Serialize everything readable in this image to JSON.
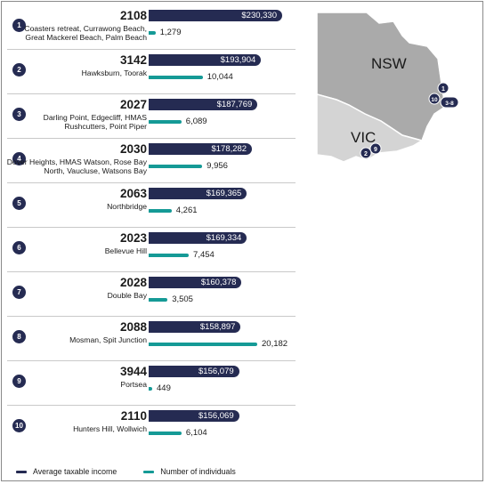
{
  "legend": {
    "income_label": "Average taxable income",
    "individuals_label": "Number of individuals"
  },
  "colors": {
    "income": "#252b52",
    "individuals": "#159a96"
  },
  "chart_data": {
    "type": "bar",
    "categories": [
      "2108",
      "3142",
      "2027",
      "2030",
      "2063",
      "2023",
      "2028",
      "2088",
      "3944",
      "2110"
    ],
    "series": [
      {
        "name": "Average taxable income",
        "values": [
          230330,
          193904,
          187769,
          178282,
          169365,
          169334,
          160378,
          158897,
          156079,
          156069
        ]
      },
      {
        "name": "Number of individuals",
        "values": [
          1279,
          10044,
          6089,
          9956,
          4261,
          7454,
          3505,
          20182,
          449,
          6104
        ]
      }
    ],
    "rows": [
      {
        "rank": "1",
        "postcode": "2108",
        "suburbs": "Coasters retreat, Currawong Beach, Great Mackerel Beach, Palm Beach",
        "income_label": "$230,330",
        "individuals_label": "1,279"
      },
      {
        "rank": "2",
        "postcode": "3142",
        "suburbs": "Hawksburn, Toorak",
        "income_label": "$193,904",
        "individuals_label": "10,044"
      },
      {
        "rank": "3",
        "postcode": "2027",
        "suburbs": "Darling Point, Edgecliff, HMAS Rushcutters, Point Piper",
        "income_label": "$187,769",
        "individuals_label": "6,089"
      },
      {
        "rank": "4",
        "postcode": "2030",
        "suburbs": "Dover Heights, HMAS Watson, Rose Bay North, Vaucluse, Watsons Bay",
        "income_label": "$178,282",
        "individuals_label": "9,956"
      },
      {
        "rank": "5",
        "postcode": "2063",
        "suburbs": "Northbridge",
        "income_label": "$169,365",
        "individuals_label": "4,261"
      },
      {
        "rank": "6",
        "postcode": "2023",
        "suburbs": "Bellevue Hill",
        "income_label": "$169,334",
        "individuals_label": "7,454"
      },
      {
        "rank": "7",
        "postcode": "2028",
        "suburbs": "Double Bay",
        "income_label": "$160,378",
        "individuals_label": "3,505"
      },
      {
        "rank": "8",
        "postcode": "2088",
        "suburbs": "Mosman, Spit Junction",
        "income_label": "$158,897",
        "individuals_label": "20,182"
      },
      {
        "rank": "9",
        "postcode": "3944",
        "suburbs": "Portsea",
        "income_label": "$156,079",
        "individuals_label": "449"
      },
      {
        "rank": "10",
        "postcode": "2110",
        "suburbs": "Hunters Hill, Wollwich",
        "income_label": "$156,069",
        "individuals_label": "6,104"
      }
    ]
  },
  "map": {
    "nsw_label": "NSW",
    "vic_label": "VIC",
    "markers": [
      "1",
      "10",
      "3-8",
      "2",
      "9"
    ]
  }
}
